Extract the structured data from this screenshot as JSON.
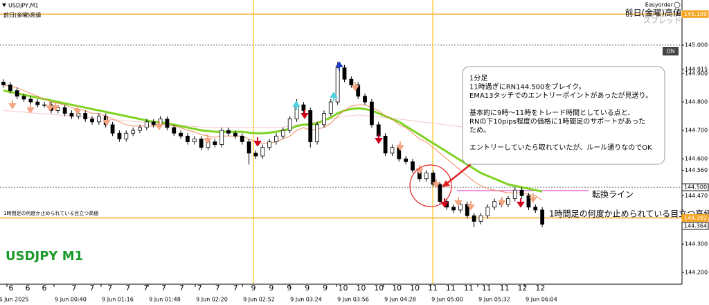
{
  "chart_data": {
    "type": "candlestick",
    "symbol": "USDJPY,M1",
    "top_left_note": "前日(金曜)高値",
    "top_right": {
      "brand": "Easyorder",
      "note": "前日(金曜)高値",
      "spread": "スプレッド"
    },
    "button": "ON",
    "watermark": "USDJPY M1",
    "callout": [
      [
        "1分足",
        "11時過ぎにRN144.500をブレイク。",
        "EMA13タッチでのエントリーポイントがあったが見送り。"
      ],
      [
        "基本的に9時～11時をトレード時間としている点と、",
        "RNの下10pips程度の価格に1時間足のサポートがあった",
        "ため。"
      ],
      [
        "エントリーしていたら取れていたが、ルール通りなのでOK"
      ]
    ],
    "turn_line_label": "転換ライン",
    "high_label_small": "1時間足の何度か止められている目立つ高値",
    "high_label": "1時間足の何度か止められている目立つ高値",
    "ylim": [
      144.159,
      145.122
    ],
    "yticks": [
      {
        "value": 145.0,
        "label": "145.000"
      },
      144.915,
      {
        "value": 144.9,
        "label": "144.900"
      },
      {
        "value": 144.8,
        "label": "144.800"
      },
      {
        "value": 144.7,
        "label": "144.700"
      },
      {
        "value": 144.6,
        "label": "144.600"
      },
      {
        "value": 144.56,
        "label": "144.560"
      },
      {
        "value": 144.47,
        "label": "144.470"
      },
      {
        "value": 144.3,
        "label": "144.300"
      },
      {
        "value": 144.2,
        "label": "144.200"
      }
    ],
    "price_tags": [
      {
        "value": 145.109,
        "color": "#f5a623",
        "line": "solid"
      },
      {
        "value": 144.5,
        "label": "144.500",
        "color": "#ffffff",
        "line": "dashed"
      },
      {
        "value": 144.392,
        "color": "#f5a623",
        "line": "solid"
      },
      {
        "value": 144.364,
        "color": "#ffffff",
        "line": "none"
      }
    ],
    "levels": [
      {
        "value": 145.0,
        "line": "dashed"
      }
    ],
    "x_labels": [
      "6 Jun 2025",
      "9 Jun 00:40",
      "9 Jun 01:16",
      "9 Jun 01:48",
      "9 Jun 02:20",
      "9 Jun 02:52",
      "9 Jun 03:24",
      "9 Jun 03:56",
      "9 Jun 04:28",
      "9 Jun 05:00",
      "9 Jun 05:32",
      "9 Jun 06:04"
    ],
    "day_labels": [
      "6",
      "6",
      "6",
      "7",
      "7",
      "7",
      "7",
      "7",
      "7",
      "7",
      "7",
      "7",
      "7",
      "9",
      "9",
      "9",
      "9",
      "9",
      "10",
      "10",
      "10",
      "10",
      "10",
      "11",
      "11",
      "11",
      "11",
      "11",
      "12",
      "12"
    ],
    "open": [
      144.87,
      144.86,
      144.84,
      144.82,
      144.81,
      144.8,
      144.79,
      144.79,
      144.77,
      144.78,
      144.76,
      144.75,
      144.76,
      144.74,
      144.73,
      144.75,
      144.72,
      144.69,
      144.67,
      144.69,
      144.7,
      144.71,
      144.73,
      144.72,
      144.74,
      144.71,
      144.69,
      144.68,
      144.66,
      144.67,
      144.64,
      144.66,
      144.65,
      144.7,
      144.69,
      144.68,
      144.66,
      144.62,
      144.61,
      144.64,
      144.66,
      144.68,
      144.7,
      144.74,
      144.79,
      144.77,
      144.66,
      144.72,
      144.76,
      144.8,
      144.92,
      144.88,
      144.86,
      144.82,
      144.8,
      144.72,
      144.68,
      144.62,
      144.64,
      144.6,
      144.59,
      144.56,
      144.53,
      144.55,
      144.51,
      144.45,
      144.43,
      144.42,
      144.44,
      144.4,
      144.38,
      144.4,
      144.43,
      144.45,
      144.44,
      144.46,
      144.49,
      144.47,
      144.43,
      144.42
    ],
    "high": [
      144.88,
      144.87,
      144.85,
      144.83,
      144.82,
      144.81,
      144.8,
      144.8,
      144.79,
      144.79,
      144.77,
      144.77,
      144.77,
      144.75,
      144.76,
      144.76,
      144.73,
      144.7,
      144.7,
      144.71,
      144.72,
      144.74,
      144.74,
      144.75,
      144.75,
      144.72,
      144.7,
      144.69,
      144.68,
      144.68,
      144.67,
      144.67,
      144.71,
      144.71,
      144.7,
      144.69,
      144.67,
      144.63,
      144.65,
      144.67,
      144.69,
      144.71,
      144.75,
      144.81,
      144.8,
      144.78,
      144.73,
      144.77,
      144.81,
      144.94,
      144.93,
      144.89,
      144.87,
      144.83,
      144.81,
      144.73,
      144.69,
      144.65,
      144.65,
      144.61,
      144.6,
      144.57,
      144.56,
      144.56,
      144.52,
      144.46,
      144.44,
      144.45,
      144.45,
      144.41,
      144.41,
      144.44,
      144.46,
      144.46,
      144.47,
      144.5,
      144.5,
      144.48,
      144.44,
      144.43
    ],
    "low": [
      144.85,
      144.83,
      144.81,
      144.8,
      144.79,
      144.78,
      144.78,
      144.76,
      144.76,
      144.75,
      144.74,
      144.74,
      144.73,
      144.72,
      144.72,
      144.71,
      144.68,
      144.66,
      144.66,
      144.68,
      144.69,
      144.7,
      144.71,
      144.71,
      144.7,
      144.68,
      144.67,
      144.65,
      144.65,
      144.63,
      144.63,
      144.64,
      144.64,
      144.68,
      144.67,
      144.65,
      144.58,
      144.6,
      144.6,
      144.63,
      144.65,
      144.67,
      144.69,
      144.73,
      144.76,
      144.64,
      144.65,
      144.71,
      144.75,
      144.79,
      144.87,
      144.85,
      144.81,
      144.79,
      144.71,
      144.67,
      144.61,
      144.61,
      144.59,
      144.58,
      144.55,
      144.52,
      144.52,
      144.5,
      144.44,
      144.42,
      144.41,
      144.41,
      144.39,
      144.36,
      144.37,
      144.39,
      144.42,
      144.43,
      144.43,
      144.45,
      144.46,
      144.42,
      144.41,
      144.36
    ],
    "close": [
      144.86,
      144.84,
      144.82,
      144.81,
      144.8,
      144.79,
      144.79,
      144.77,
      144.78,
      144.76,
      144.75,
      144.76,
      144.74,
      144.73,
      144.75,
      144.72,
      144.69,
      144.67,
      144.69,
      144.7,
      144.71,
      144.73,
      144.72,
      144.74,
      144.71,
      144.69,
      144.68,
      144.66,
      144.67,
      144.64,
      144.66,
      144.65,
      144.7,
      144.69,
      144.68,
      144.66,
      144.62,
      144.61,
      144.64,
      144.66,
      144.68,
      144.7,
      144.74,
      144.79,
      144.77,
      144.66,
      144.72,
      144.76,
      144.8,
      144.92,
      144.88,
      144.86,
      144.82,
      144.8,
      144.72,
      144.68,
      144.62,
      144.64,
      144.6,
      144.59,
      144.56,
      144.53,
      144.55,
      144.51,
      144.45,
      144.43,
      144.42,
      144.44,
      144.4,
      144.38,
      144.4,
      144.43,
      144.45,
      144.44,
      144.46,
      144.49,
      144.47,
      144.43,
      144.42,
      144.37
    ],
    "lines": [
      {
        "color": "#f7c6c6",
        "width": 1,
        "values": [
          144.77,
          144.768,
          144.766,
          144.764,
          144.762,
          144.76,
          144.758,
          144.756,
          144.754,
          144.752,
          144.75,
          144.748,
          144.746,
          144.744,
          144.742,
          144.74,
          144.738,
          144.736,
          144.734,
          144.732,
          144.73,
          144.728,
          144.726,
          144.724,
          144.722,
          144.72,
          144.718,
          144.716,
          144.714,
          144.712,
          144.71,
          144.71,
          144.71,
          144.71,
          144.71,
          144.71,
          144.71,
          144.71,
          144.71,
          144.71,
          144.71,
          144.712,
          144.715,
          144.72,
          144.722,
          144.725,
          144.73,
          144.735,
          144.74,
          144.745,
          144.75,
          144.752,
          144.754,
          144.752,
          144.75,
          144.748,
          144.745,
          144.742,
          144.74,
          144.737,
          144.734,
          144.731,
          144.728,
          144.725,
          144.722,
          144.719,
          144.716,
          144.713,
          144.71,
          144.707,
          144.704,
          144.701,
          144.698,
          144.695,
          144.692,
          144.69,
          144.688,
          144.686,
          144.684,
          144.682
        ]
      },
      {
        "color": "#7ed321",
        "width": 3,
        "values": [
          144.84,
          144.835,
          144.83,
          144.825,
          144.82,
          144.815,
          144.81,
          144.805,
          144.8,
          144.795,
          144.79,
          144.785,
          144.78,
          144.775,
          144.77,
          144.765,
          144.76,
          144.755,
          144.75,
          144.745,
          144.74,
          144.735,
          144.73,
          144.728,
          144.725,
          144.72,
          144.715,
          144.71,
          144.705,
          144.7,
          144.698,
          144.695,
          144.695,
          144.695,
          144.695,
          144.695,
          144.692,
          144.69,
          144.69,
          144.692,
          144.695,
          144.7,
          144.705,
          144.715,
          144.72,
          144.72,
          144.725,
          144.735,
          144.745,
          144.76,
          144.77,
          144.775,
          144.778,
          144.775,
          144.77,
          144.76,
          144.75,
          144.74,
          144.73,
          144.715,
          144.7,
          144.685,
          144.67,
          144.655,
          144.64,
          144.625,
          144.61,
          144.595,
          144.58,
          144.565,
          144.55,
          144.54,
          144.53,
          144.52,
          144.51,
          144.505,
          144.5,
          144.495,
          144.49,
          144.485
        ]
      },
      {
        "color": "#f08a5d",
        "width": 1,
        "values": [
          144.86,
          144.855,
          144.85,
          144.84,
          144.83,
          144.82,
          144.81,
          144.8,
          144.795,
          144.79,
          144.78,
          144.775,
          144.77,
          144.76,
          144.76,
          144.75,
          144.74,
          144.73,
          144.72,
          144.715,
          144.715,
          144.715,
          144.715,
          144.72,
          144.72,
          144.715,
          144.71,
          144.7,
          144.695,
          144.685,
          144.68,
          144.675,
          144.68,
          144.68,
          144.68,
          144.68,
          144.67,
          144.66,
          144.655,
          144.655,
          144.66,
          144.67,
          144.68,
          144.7,
          144.71,
          144.7,
          144.705,
          144.71,
          144.725,
          144.75,
          144.77,
          144.785,
          144.79,
          144.79,
          144.78,
          144.77,
          144.75,
          144.74,
          144.72,
          144.71,
          144.69,
          144.67,
          144.66,
          144.64,
          144.62,
          144.6,
          144.58,
          144.56,
          144.54,
          144.52,
          144.505,
          144.495,
          144.49,
          144.485,
          144.48,
          144.48,
          144.48,
          144.475,
          144.47,
          144.455
        ]
      }
    ]
  }
}
